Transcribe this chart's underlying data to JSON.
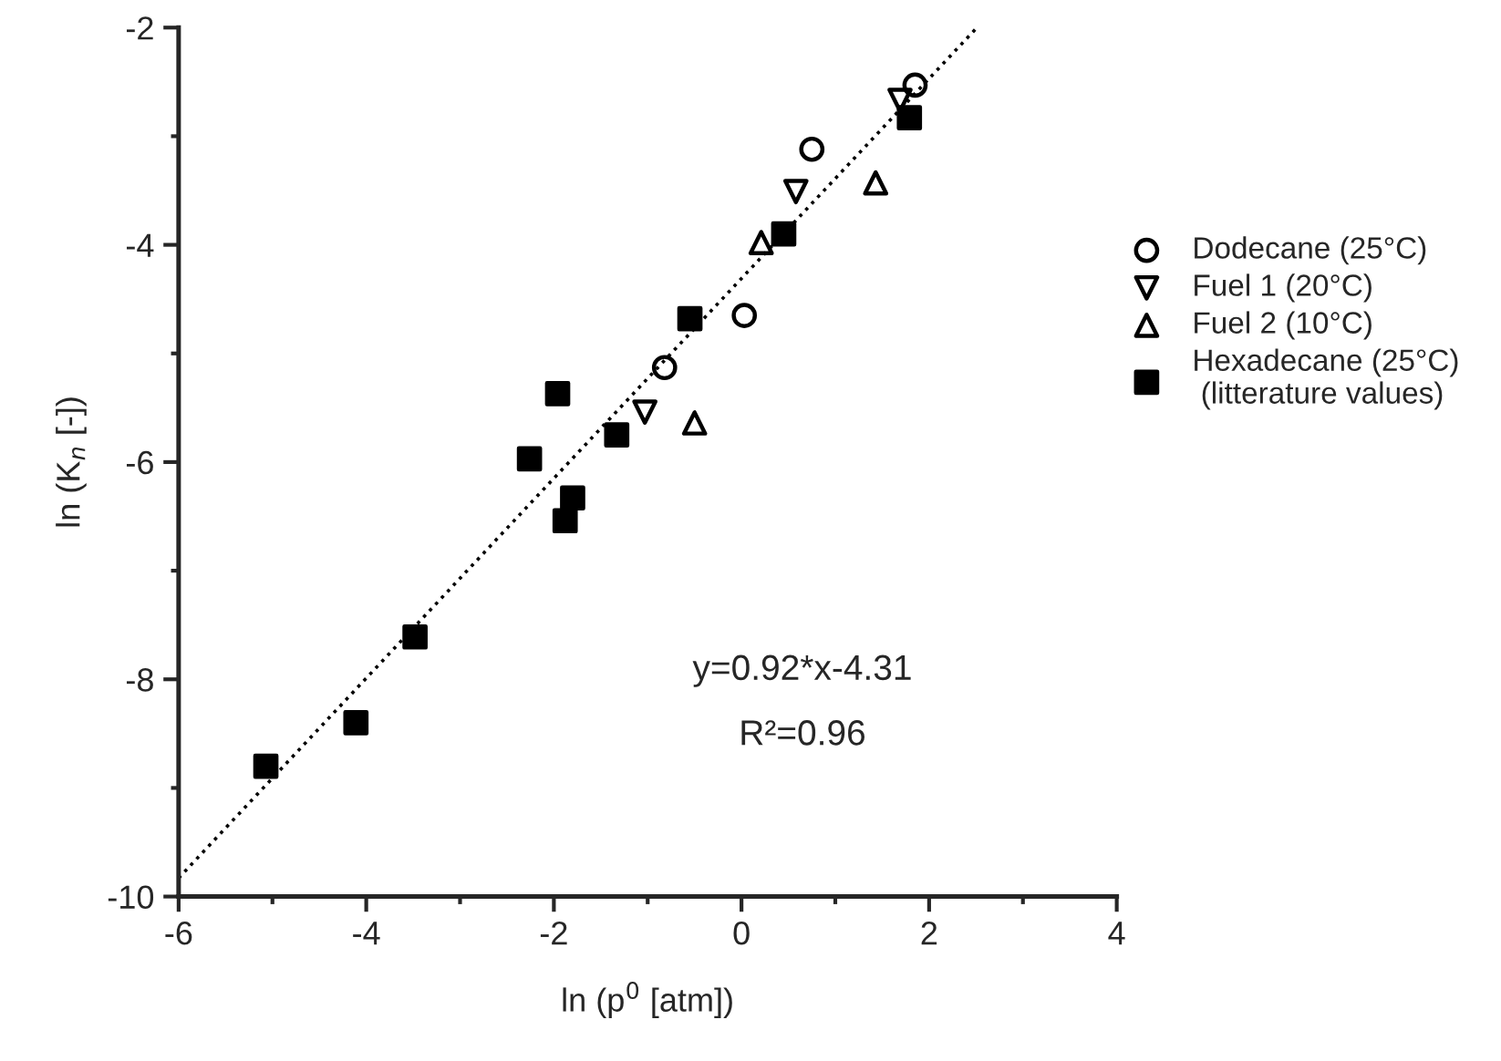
{
  "chart_data": {
    "type": "scatter",
    "xlabel": "ln (p$^{0}$ [atm])",
    "ylabel": "ln (K$_{n}$ [-])",
    "xlim": [
      -6,
      4
    ],
    "xticks": [
      -6,
      -4,
      -2,
      0,
      2,
      4
    ],
    "ylim": [
      -10,
      -2
    ],
    "yticks": [
      -10,
      -8,
      -6,
      -4,
      -2
    ],
    "grid": false,
    "legend": "right",
    "annotations": [
      "y=0.92*x-4.31",
      "R²=0.96"
    ],
    "series": [
      {
        "name": "Dodecane (25°C)",
        "color": "#000000",
        "marker": "circle",
        "x": [
          1.85,
          0.75,
          0.03,
          -0.82
        ],
        "values": [
          -2.53,
          -3.12,
          -4.65,
          -5.13
        ]
      },
      {
        "name": "Fuel 1 (20°C)",
        "color": "#000000",
        "marker": "triangle_down",
        "x": [
          1.69,
          0.58,
          -1.03
        ],
        "values": [
          -2.67,
          -3.51,
          -5.54
        ]
      },
      {
        "name": "Fuel 2 (10°C)",
        "color": "#000000",
        "marker": "triangle",
        "x": [
          1.43,
          0.21,
          -0.5
        ],
        "values": [
          -3.43,
          -3.98,
          -5.64
        ]
      },
      {
        "name": "Hexadecane (25°C)\n (litterature values)",
        "color": "#000000",
        "marker": "square",
        "x": [
          1.79,
          0.45,
          -0.55,
          -1.96,
          -1.33,
          -2.26,
          -1.8,
          -1.88,
          -3.48,
          -4.11,
          -5.07
        ],
        "values": [
          -2.83,
          -3.9,
          -4.68,
          -5.37,
          -5.75,
          -5.97,
          -6.33,
          -6.54,
          -7.61,
          -8.4,
          -8.8
        ]
      },
      {
        "type": "line",
        "color": "#000000",
        "line_style": "dotted",
        "marker": "none",
        "x": [
          -6,
          2.51
        ],
        "values": [
          -9.83,
          -2.0
        ]
      }
    ]
  }
}
